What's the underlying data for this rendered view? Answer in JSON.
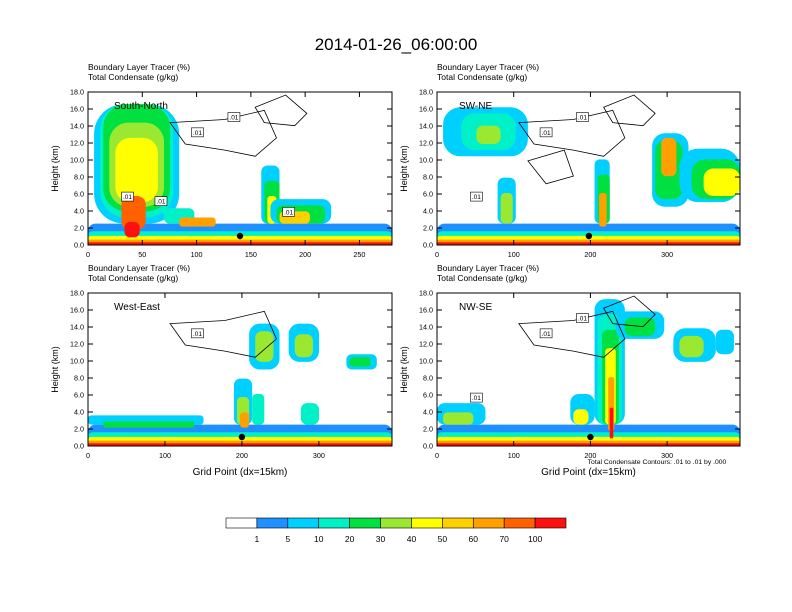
{
  "title": "2014-01-26_06:00:00",
  "chart_data": [
    {
      "type": "heatmap",
      "subtitle_line1": "Boundary Layer Tracer   (%)",
      "subtitle_line2": "Total Condensate   (g/kg)",
      "panel_label": "South-North",
      "ylabel": "Height (km)",
      "xlabel": "",
      "xlim": [
        0,
        280
      ],
      "ylim": [
        0,
        18
      ],
      "xticks": [
        "0",
        "50",
        "100",
        "150",
        "200",
        "250"
      ],
      "yticks": [
        "0.0",
        "2.0",
        "4.0",
        "6.0",
        "8.0",
        "10.0",
        "12.0",
        "14.0",
        "16.0",
        "18.0"
      ],
      "contour_labels": [
        ".01",
        ".01",
        ".01",
        ".01",
        ".01"
      ],
      "marker_x": 140
    },
    {
      "type": "heatmap",
      "subtitle_line1": "Boundary Layer Tracer   (%)",
      "subtitle_line2": "Total Condensate   (g/kg)",
      "panel_label": "SW-NE",
      "ylabel": "Height (km)",
      "xlabel": "",
      "xlim": [
        0,
        395
      ],
      "ylim": [
        0,
        18
      ],
      "xticks": [
        "0",
        "100",
        "200",
        "300"
      ],
      "yticks": [
        "0.0",
        "2.0",
        "4.0",
        "6.0",
        "8.0",
        "10.0",
        "12.0",
        "14.0",
        "16.0",
        "18.0"
      ],
      "contour_labels": [
        ".01",
        ".01",
        ".01"
      ],
      "marker_x": 198
    },
    {
      "type": "heatmap",
      "subtitle_line1": "Boundary Layer Tracer   (%)",
      "subtitle_line2": "Total Condensate   (g/kg)",
      "panel_label": "West-East",
      "ylabel": "Height (km)",
      "xlabel": "Grid Point (dx=15km)",
      "xlim": [
        0,
        395
      ],
      "ylim": [
        0,
        18
      ],
      "xticks": [
        "0",
        "100",
        "200",
        "300"
      ],
      "yticks": [
        "0.0",
        "2.0",
        "4.0",
        "6.0",
        "8.0",
        "10.0",
        "12.0",
        "14.0",
        "16.0",
        "18.0"
      ],
      "contour_labels": [
        ".01"
      ],
      "marker_x": 200
    },
    {
      "type": "heatmap",
      "subtitle_line1": "Boundary Layer Tracer   (%)",
      "subtitle_line2": "Total Condensate   (g/kg)",
      "panel_label": "NW-SE",
      "ylabel": "Height (km)",
      "xlabel": "Grid Point (dx=15km)",
      "xlim": [
        0,
        395
      ],
      "ylim": [
        0,
        18
      ],
      "xticks": [
        "0",
        "100",
        "200",
        "300"
      ],
      "yticks": [
        "0.0",
        "2.0",
        "4.0",
        "6.0",
        "8.0",
        "10.0",
        "12.0",
        "14.0",
        "16.0",
        "18.0"
      ],
      "contour_labels": [
        ".01",
        ".01",
        ".01"
      ],
      "marker_x": 200
    }
  ],
  "contour_note": "Total Condensate Contours: .01 to .01 by .000",
  "colorbar": {
    "colors": [
      "#ffffff",
      "#1e90ff",
      "#00d0ff",
      "#00f0c8",
      "#00e040",
      "#9be830",
      "#ffff00",
      "#ffd000",
      "#ffa000",
      "#ff6000",
      "#ff1010"
    ],
    "labels": [
      "1",
      "5",
      "10",
      "20",
      "30",
      "40",
      "50",
      "60",
      "70",
      "100"
    ]
  }
}
